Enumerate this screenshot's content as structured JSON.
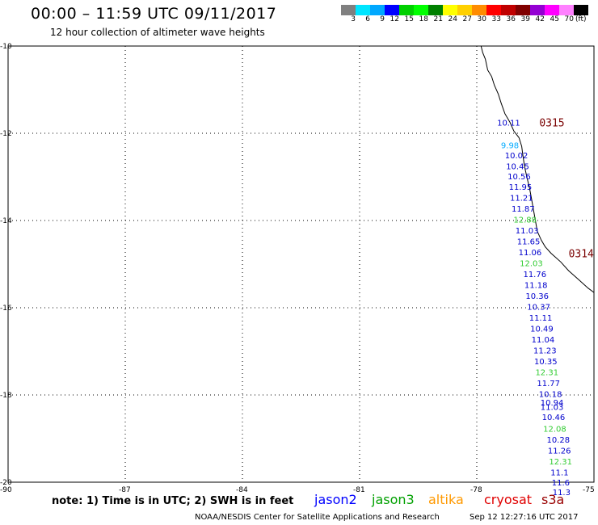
{
  "header": {
    "title": "00:00 – 11:59 UTC 09/11/2017",
    "subtitle": "12 hour collection of altimeter wave heights"
  },
  "scale": {
    "colors": [
      "#808080",
      "#00e5ff",
      "#00a8ff",
      "#0000ff",
      "#00d000",
      "#00ff00",
      "#008000",
      "#ffff00",
      "#ffd000",
      "#ff8c00",
      "#ff0000",
      "#c00000",
      "#800000",
      "#9400d3",
      "#ff00ff",
      "#ff80ff",
      "#000000"
    ],
    "labels": [
      "3",
      "6",
      "9",
      "12",
      "15",
      "18",
      "21",
      "24",
      "27",
      "30",
      "33",
      "36",
      "39",
      "42",
      "45",
      "70",
      "(ft)"
    ]
  },
  "axes": {
    "lat_labels": [
      "-10",
      "-12",
      "-14",
      "-16",
      "-18",
      "-20"
    ],
    "lon_labels": [
      "-90",
      "-87",
      "-84",
      "-81",
      "-78",
      "-75"
    ]
  },
  "passes": [
    {
      "id": "0315",
      "color": "#7a0000"
    },
    {
      "id": "0314",
      "color": "#7a0000"
    }
  ],
  "wave_heights": [
    {
      "text": "10.11",
      "color": "#0000cc",
      "lon": -77.15,
      "lat": -11.75
    },
    {
      "text": "9.98",
      "color": "#00aaff",
      "lon": -77.05,
      "lat": -12.27
    },
    {
      "text": "10.02",
      "color": "#0000cc",
      "lon": -76.95,
      "lat": -12.5
    },
    {
      "text": "10.45",
      "color": "#0000cc",
      "lon": -76.92,
      "lat": -12.75
    },
    {
      "text": "10.56",
      "color": "#0000cc",
      "lon": -76.88,
      "lat": -12.98
    },
    {
      "text": "11.95",
      "color": "#0000cc",
      "lon": -76.85,
      "lat": -13.22
    },
    {
      "text": "11.21",
      "color": "#0000cc",
      "lon": -76.82,
      "lat": -13.47
    },
    {
      "text": "11.87",
      "color": "#0000cc",
      "lon": -76.78,
      "lat": -13.72
    },
    {
      "text": "12.88",
      "color": "#33cc33",
      "lon": -76.73,
      "lat": -13.97
    },
    {
      "text": "11.03",
      "color": "#0000cc",
      "lon": -76.68,
      "lat": -14.22
    },
    {
      "text": "11.65",
      "color": "#0000cc",
      "lon": -76.64,
      "lat": -14.47
    },
    {
      "text": "11.06",
      "color": "#0000cc",
      "lon": -76.6,
      "lat": -14.72
    },
    {
      "text": "12.03",
      "color": "#33cc33",
      "lon": -76.57,
      "lat": -14.97
    },
    {
      "text": "11.76",
      "color": "#0000cc",
      "lon": -76.48,
      "lat": -15.22
    },
    {
      "text": "11.18",
      "color": "#0000cc",
      "lon": -76.45,
      "lat": -15.47
    },
    {
      "text": "10.36",
      "color": "#0000cc",
      "lon": -76.42,
      "lat": -15.72
    },
    {
      "text": "10.37",
      "color": "#0000cc",
      "lon": -76.38,
      "lat": -15.97
    },
    {
      "text": "11.11",
      "color": "#0000cc",
      "lon": -76.33,
      "lat": -16.22
    },
    {
      "text": "10.49",
      "color": "#0000cc",
      "lon": -76.3,
      "lat": -16.47
    },
    {
      "text": "11.04",
      "color": "#0000cc",
      "lon": -76.27,
      "lat": -16.72
    },
    {
      "text": "11.23",
      "color": "#0000cc",
      "lon": -76.22,
      "lat": -16.97
    },
    {
      "text": "10.35",
      "color": "#0000cc",
      "lon": -76.2,
      "lat": -17.22
    },
    {
      "text": "12.31",
      "color": "#33cc33",
      "lon": -76.17,
      "lat": -17.47
    },
    {
      "text": "11.77",
      "color": "#0000cc",
      "lon": -76.13,
      "lat": -17.72
    },
    {
      "text": "10.18",
      "color": "#0000cc",
      "lon": -76.08,
      "lat": -17.97
    },
    {
      "text": "10.94",
      "color": "#0000cc",
      "lon": -76.04,
      "lat": -18.17
    },
    {
      "text": "11.03",
      "color": "#0000cc",
      "lon": -76.04,
      "lat": -18.27
    },
    {
      "text": "10.46",
      "color": "#0000cc",
      "lon": -76.0,
      "lat": -18.5
    },
    {
      "text": "12.08",
      "color": "#33cc33",
      "lon": -75.97,
      "lat": -18.77
    },
    {
      "text": "10.28",
      "color": "#0000cc",
      "lon": -75.88,
      "lat": -19.02
    },
    {
      "text": "11.26",
      "color": "#0000cc",
      "lon": -75.85,
      "lat": -19.27
    },
    {
      "text": "12.31",
      "color": "#33cc33",
      "lon": -75.82,
      "lat": -19.52
    },
    {
      "text": "11.1",
      "color": "#0000cc",
      "lon": -75.78,
      "lat": -19.77
    },
    {
      "text": "11.6",
      "color": "#0000cc",
      "lon": -75.75,
      "lat": -20.0
    },
    {
      "text": "11.3",
      "color": "#0000cc",
      "lon": -75.73,
      "lat": -20.22
    }
  ],
  "coastline": [
    [
      -77.89,
      -10.0
    ],
    [
      -77.85,
      -10.15
    ],
    [
      -77.78,
      -10.3
    ],
    [
      -77.72,
      -10.55
    ],
    [
      -77.62,
      -10.7
    ],
    [
      -77.55,
      -10.9
    ],
    [
      -77.45,
      -11.1
    ],
    [
      -77.38,
      -11.3
    ],
    [
      -77.28,
      -11.55
    ],
    [
      -77.15,
      -11.75
    ],
    [
      -77.05,
      -11.95
    ],
    [
      -76.92,
      -12.1
    ],
    [
      -76.85,
      -12.3
    ],
    [
      -76.82,
      -12.5
    ],
    [
      -76.78,
      -12.75
    ],
    [
      -76.72,
      -13.0
    ],
    [
      -76.65,
      -13.25
    ],
    [
      -76.6,
      -13.5
    ],
    [
      -76.55,
      -13.75
    ],
    [
      -76.5,
      -14.0
    ],
    [
      -76.45,
      -14.25
    ],
    [
      -76.35,
      -14.45
    ],
    [
      -76.25,
      -14.6
    ],
    [
      -76.1,
      -14.75
    ],
    [
      -75.85,
      -14.95
    ],
    [
      -75.65,
      -15.15
    ],
    [
      -75.4,
      -15.35
    ],
    [
      -75.15,
      -15.55
    ],
    [
      -75.0,
      -15.65
    ]
  ],
  "footer": {
    "note": "note:  1) Time is in UTC;  2) SWH is in feet",
    "credit": "NOAA/NESDIS Center for Satellite Applications and Research",
    "timestamp": "Sep 12 12:27:16 UTC 2017"
  },
  "legend": [
    {
      "label": "jason2",
      "color": "#0000ff"
    },
    {
      "label": "jason3",
      "color": "#00a000"
    },
    {
      "label": "altika",
      "color": "#ff9900"
    },
    {
      "label": "cryosat",
      "color": "#e00000"
    },
    {
      "label": "s3a",
      "color": "#990000"
    }
  ]
}
